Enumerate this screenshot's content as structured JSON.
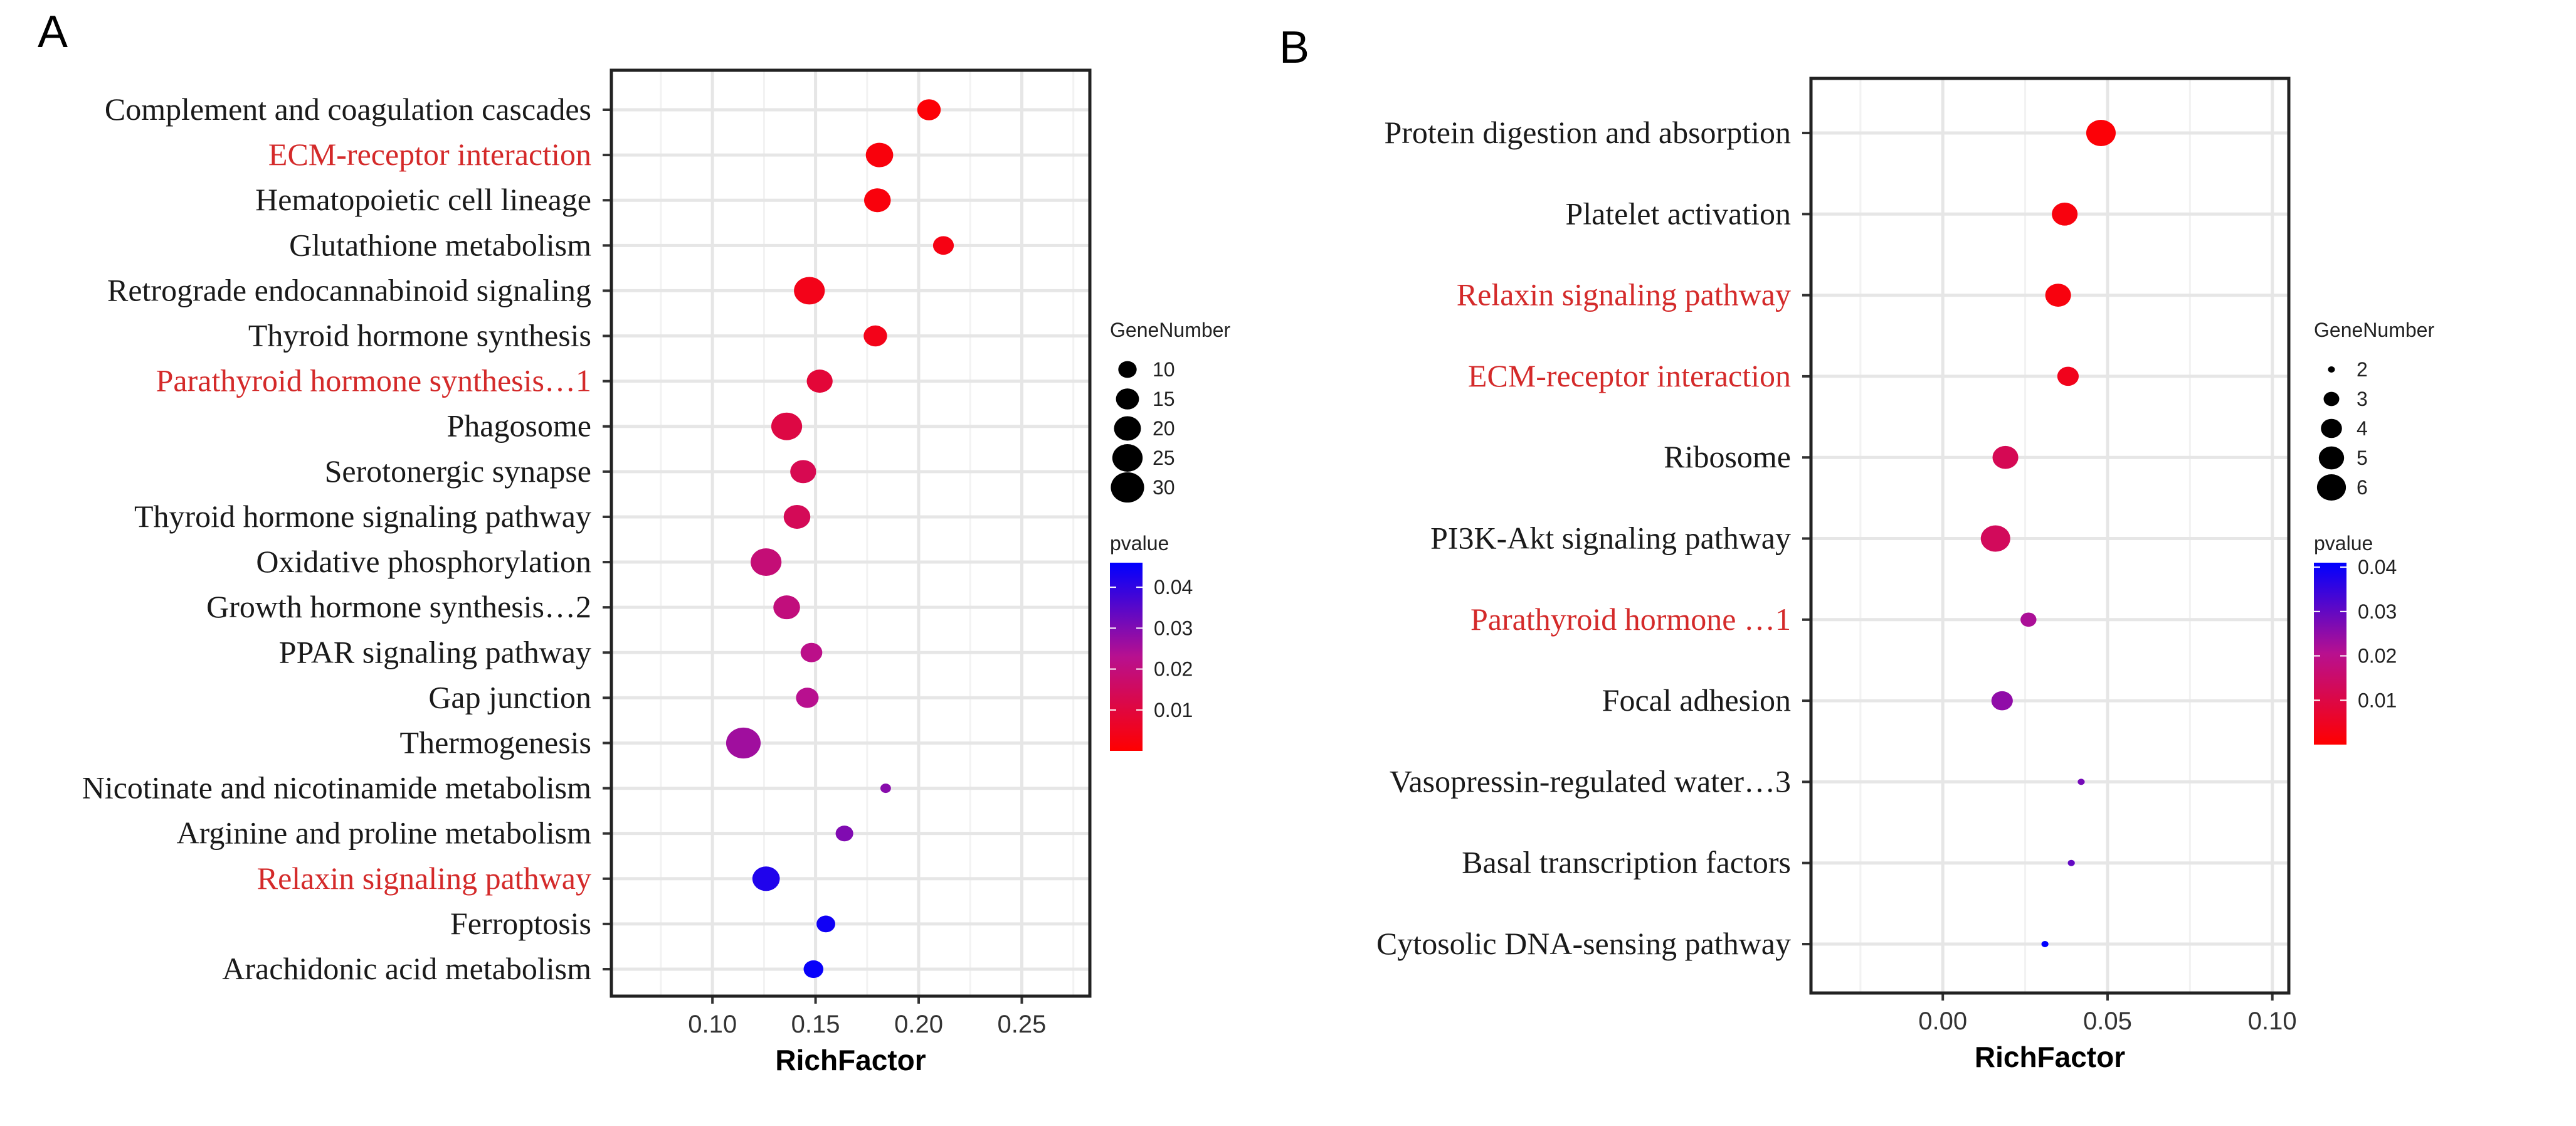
{
  "colors": {
    "low_p": "#ff0000",
    "mid_p": "#b8108f",
    "high_p": "#0000ff",
    "highlight_label": "#d42a2a",
    "label": "#1a1a1a"
  },
  "chart_data": [
    {
      "panel_label": "A",
      "type": "scatter",
      "xlabel": "RichFactor",
      "xlim": [
        0.051,
        0.283
      ],
      "xticks": [
        0.1,
        0.15,
        0.2,
        0.25
      ],
      "xtick_labels": [
        "0.10",
        "0.15",
        "0.20",
        "0.25"
      ],
      "grid": true,
      "size_legend": {
        "title": "GeneNumber",
        "values": [
          10,
          15,
          20,
          25,
          30
        ],
        "labels": [
          "10",
          "15",
          "20",
          "25",
          "30"
        ],
        "domain": [
          3,
          32
        ]
      },
      "color_legend": {
        "title": "pvalue",
        "ticks": [
          0.04,
          0.03,
          0.02,
          0.01
        ],
        "labels": [
          "0.04",
          "0.03",
          "0.02",
          "0.01"
        ],
        "range": [
          0,
          0.046
        ]
      },
      "legend_position": "right",
      "points": [
        {
          "term": "Complement and coagulation cascades",
          "rich_factor": 0.205,
          "gene_number": 15,
          "pvalue": 0.001,
          "highlight": false
        },
        {
          "term": "ECM-receptor interaction",
          "rich_factor": 0.181,
          "gene_number": 20,
          "pvalue": 0.002,
          "highlight": true
        },
        {
          "term": "Hematopoietic cell lineage",
          "rich_factor": 0.18,
          "gene_number": 19,
          "pvalue": 0.002,
          "highlight": false
        },
        {
          "term": "Glutathione metabolism",
          "rich_factor": 0.212,
          "gene_number": 12,
          "pvalue": 0.003,
          "highlight": false
        },
        {
          "term": "Retrograde endocannabinoid signaling",
          "rich_factor": 0.147,
          "gene_number": 25,
          "pvalue": 0.004,
          "highlight": false
        },
        {
          "term": "Thyroid hormone synthesis",
          "rich_factor": 0.179,
          "gene_number": 15,
          "pvalue": 0.004,
          "highlight": false
        },
        {
          "term": "Parathyroid hormone synthesis…1",
          "rich_factor": 0.152,
          "gene_number": 18,
          "pvalue": 0.009,
          "highlight": true
        },
        {
          "term": "Phagosome",
          "rich_factor": 0.136,
          "gene_number": 25,
          "pvalue": 0.011,
          "highlight": false
        },
        {
          "term": "Serotonergic synapse",
          "rich_factor": 0.144,
          "gene_number": 18,
          "pvalue": 0.013,
          "highlight": false
        },
        {
          "term": "Thyroid hormone signaling pathway",
          "rich_factor": 0.141,
          "gene_number": 19,
          "pvalue": 0.014,
          "highlight": false
        },
        {
          "term": "Oxidative phosphorylation",
          "rich_factor": 0.126,
          "gene_number": 25,
          "pvalue": 0.019,
          "highlight": false
        },
        {
          "term": "Growth hormone synthesis…2",
          "rich_factor": 0.136,
          "gene_number": 19,
          "pvalue": 0.02,
          "highlight": false
        },
        {
          "term": "PPAR signaling pathway",
          "rich_factor": 0.148,
          "gene_number": 13,
          "pvalue": 0.022,
          "highlight": false
        },
        {
          "term": "Gap junction",
          "rich_factor": 0.146,
          "gene_number": 14,
          "pvalue": 0.023,
          "highlight": false
        },
        {
          "term": "Thermogenesis",
          "rich_factor": 0.115,
          "gene_number": 31,
          "pvalue": 0.026,
          "highlight": false
        },
        {
          "term": "Nicotinate and nicotinamide metabolism",
          "rich_factor": 0.184,
          "gene_number": 4,
          "pvalue": 0.029,
          "highlight": false
        },
        {
          "term": "Arginine and proline metabolism",
          "rich_factor": 0.164,
          "gene_number": 9,
          "pvalue": 0.03,
          "highlight": false
        },
        {
          "term": "Relaxin signaling pathway",
          "rich_factor": 0.126,
          "gene_number": 20,
          "pvalue": 0.042,
          "highlight": true
        },
        {
          "term": "Ferroptosis",
          "rich_factor": 0.155,
          "gene_number": 10,
          "pvalue": 0.044,
          "highlight": false
        },
        {
          "term": "Arachidonic acid metabolism",
          "rich_factor": 0.149,
          "gene_number": 11,
          "pvalue": 0.045,
          "highlight": false
        }
      ]
    },
    {
      "panel_label": "B",
      "type": "scatter",
      "xlabel": "RichFactor",
      "xlim": [
        -0.04,
        0.105
      ],
      "xticks": [
        0.0,
        0.05,
        0.1
      ],
      "xtick_labels": [
        "0.00",
        "0.05",
        "0.10"
      ],
      "grid": true,
      "size_legend": {
        "title": "GeneNumber",
        "values": [
          2,
          3,
          4,
          5,
          6
        ],
        "labels": [
          "2",
          "3",
          "4",
          "5",
          "6"
        ],
        "domain": [
          2,
          6
        ]
      },
      "color_legend": {
        "title": "pvalue",
        "ticks": [
          0.04,
          0.03,
          0.02,
          0.01
        ],
        "labels": [
          "0.04",
          "0.03",
          "0.02",
          "0.01"
        ],
        "range": [
          0,
          0.041
        ]
      },
      "legend_position": "right",
      "points": [
        {
          "term": "Protein digestion and absorption",
          "rich_factor": 0.048,
          "gene_number": 6,
          "pvalue": 0.001,
          "highlight": false
        },
        {
          "term": "Platelet activation",
          "rich_factor": 0.037,
          "gene_number": 5,
          "pvalue": 0.002,
          "highlight": false
        },
        {
          "term": "Relaxin signaling pathway",
          "rich_factor": 0.035,
          "gene_number": 5,
          "pvalue": 0.002,
          "highlight": true
        },
        {
          "term": "ECM-receptor interaction",
          "rich_factor": 0.038,
          "gene_number": 4,
          "pvalue": 0.004,
          "highlight": true
        },
        {
          "term": "Ribosome",
          "rich_factor": 0.019,
          "gene_number": 5,
          "pvalue": 0.012,
          "highlight": false
        },
        {
          "term": "PI3K-Akt signaling pathway",
          "rich_factor": 0.016,
          "gene_number": 6,
          "pvalue": 0.013,
          "highlight": false
        },
        {
          "term": "Parathyroid hormone …1",
          "rich_factor": 0.026,
          "gene_number": 3,
          "pvalue": 0.022,
          "highlight": true
        },
        {
          "term": "Focal adhesion",
          "rich_factor": 0.018,
          "gene_number": 4,
          "pvalue": 0.025,
          "highlight": false
        },
        {
          "term": "Vasopressin-regulated water…3",
          "rich_factor": 0.042,
          "gene_number": 2,
          "pvalue": 0.028,
          "highlight": false
        },
        {
          "term": "Basal transcription factors",
          "rich_factor": 0.039,
          "gene_number": 2,
          "pvalue": 0.03,
          "highlight": false
        },
        {
          "term": "Cytosolic DNA-sensing pathway",
          "rich_factor": 0.031,
          "gene_number": 2,
          "pvalue": 0.045,
          "highlight": false
        }
      ]
    }
  ]
}
